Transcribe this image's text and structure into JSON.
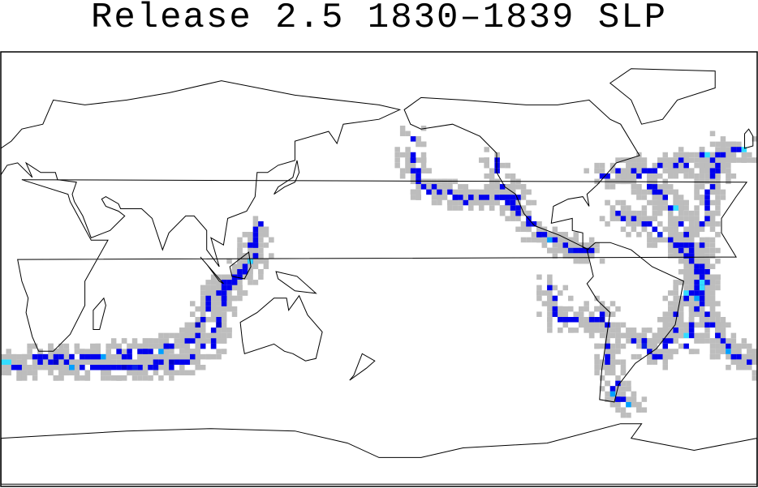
{
  "header": {
    "title": "Release 2.5 1830–1839 SLP"
  }
}
